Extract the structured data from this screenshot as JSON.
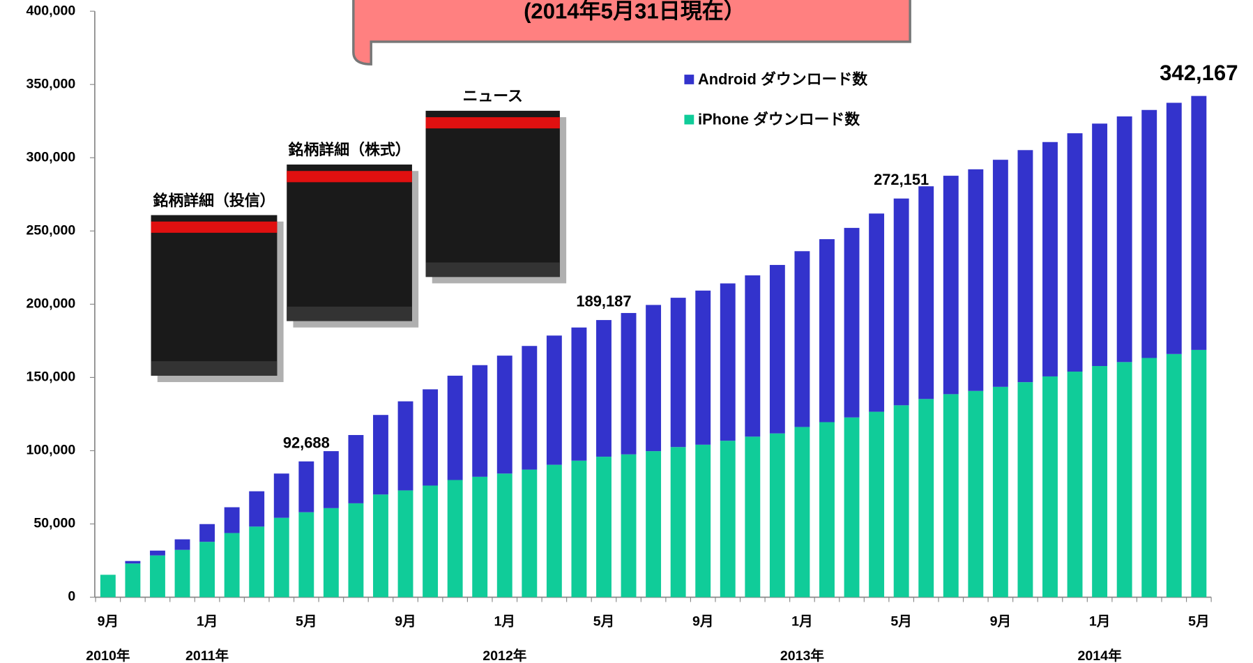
{
  "chart_data": {
    "type": "stacked-bar",
    "banner": "(2014年5月31日現在）",
    "categories": [
      "9月",
      null,
      null,
      null,
      "1月",
      null,
      null,
      null,
      "5月",
      null,
      null,
      null,
      "9月",
      null,
      null,
      null,
      "1月",
      null,
      null,
      null,
      "5月",
      null,
      null,
      null,
      "9月",
      null,
      null,
      null,
      "1月",
      null,
      null,
      null,
      "5月",
      null,
      null,
      null,
      "9月",
      null,
      null,
      null,
      "1月",
      null,
      null,
      null,
      "5月"
    ],
    "year_labels": [
      "2010年",
      null,
      null,
      null,
      "2011年",
      null,
      null,
      null,
      null,
      null,
      null,
      null,
      null,
      null,
      null,
      null,
      "2012年",
      null,
      null,
      null,
      null,
      null,
      null,
      null,
      null,
      null,
      null,
      null,
      "2013年",
      null,
      null,
      null,
      null,
      null,
      null,
      null,
      null,
      null,
      null,
      null,
      "2014年",
      null,
      null,
      null,
      null
    ],
    "series": [
      {
        "name": "iPhone ダウンロード数",
        "color": "#10cc99",
        "values": [
          15300,
          23000,
          28500,
          32300,
          37800,
          43800,
          48200,
          54200,
          58000,
          60800,
          64100,
          70100,
          72900,
          76200,
          80000,
          82200,
          84400,
          87100,
          90400,
          93200,
          95900,
          97500,
          99700,
          102500,
          104100,
          106800,
          109600,
          111800,
          116200,
          119500,
          122700,
          126600,
          131000,
          135300,
          138600,
          140800,
          143600,
          146800,
          150700,
          154000,
          157800,
          160500,
          163300,
          166000,
          168800
        ]
      },
      {
        "name": "Android ダウンロード数",
        "color": "#3333cc",
        "values": [
          0,
          1700,
          3300,
          7200,
          12100,
          17600,
          24100,
          30200,
          34688,
          38900,
          46600,
          54300,
          60800,
          65700,
          71200,
          76200,
          80500,
          84400,
          88200,
          90900,
          93287,
          96500,
          99800,
          101900,
          105200,
          107400,
          110100,
          115000,
          120000,
          124900,
          129400,
          135300,
          141151,
          145200,
          149100,
          151300,
          155000,
          158400,
          160000,
          162700,
          165500,
          167700,
          169300,
          171500,
          173367
        ]
      }
    ],
    "total_labels": [
      null,
      null,
      null,
      null,
      null,
      null,
      null,
      null,
      "92,688",
      null,
      null,
      null,
      null,
      null,
      null,
      null,
      null,
      null,
      null,
      null,
      "189,187",
      null,
      null,
      null,
      null,
      null,
      null,
      null,
      null,
      null,
      null,
      null,
      "272,151",
      null,
      null,
      null,
      null,
      null,
      null,
      null,
      null,
      null,
      null,
      null,
      "342,167"
    ],
    "ylim": [
      0,
      400000
    ],
    "yticks": [
      {
        "value": 0,
        "label": "0"
      },
      {
        "value": 50000,
        "label": "50,000"
      },
      {
        "value": 100000,
        "label": "100,000"
      },
      {
        "value": 150000,
        "label": "150,000"
      },
      {
        "value": 200000,
        "label": "200,000"
      },
      {
        "value": 250000,
        "label": "250,000"
      },
      {
        "value": 300000,
        "label": "300,000"
      },
      {
        "value": 350000,
        "label": "350,000"
      },
      {
        "value": 400000,
        "label": "400,000"
      }
    ],
    "images": [
      {
        "caption": "銘柄詳細（投信）"
      },
      {
        "caption": "銘柄詳細（株式）"
      },
      {
        "caption": "ニュース"
      }
    ]
  }
}
